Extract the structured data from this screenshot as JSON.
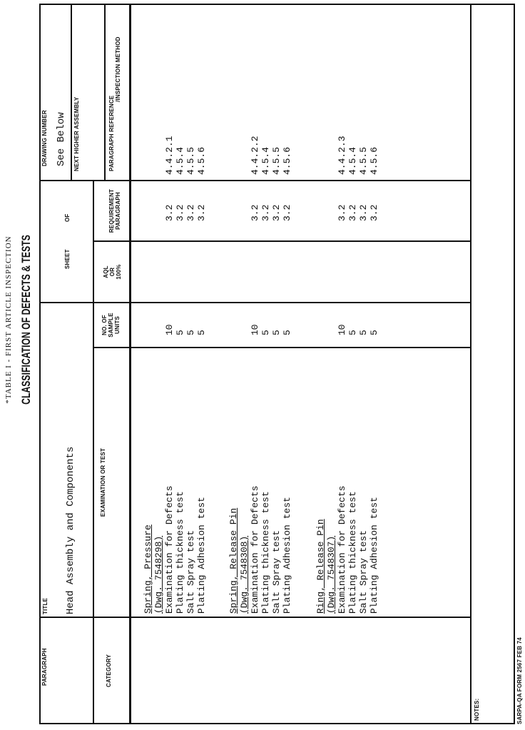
{
  "heading": {
    "table_title": "*TABLE I - FIRST ARTICLE INSPECTION",
    "subtitle": "CLASSIFICATION OF DEFECTS & TESTS"
  },
  "header": {
    "paragraph_label": "PARAGRAPH",
    "title_label": "TITLE",
    "title_value": "Head Assembly and Components",
    "sheet_label": "SHEET",
    "of_label": "OF",
    "drawing_number_label": "DRAWING NUMBER",
    "drawing_number_value": "See Below",
    "next_higher_assembly_label": "NEXT HIGHER ASSEMBLY"
  },
  "columns": {
    "category": "CATEGORY",
    "examination": "EXAMINATION OR TEST",
    "sample_units": [
      "NO. OF",
      "SAMPLE",
      "UNITS"
    ],
    "aql": [
      "AQL",
      "OR",
      "100%"
    ],
    "requirement": [
      "REQUIREMENT",
      "PARAGRAPH"
    ],
    "reference": [
      "PARAGRAPH REFERENCE",
      "/INSPECTION METHOD"
    ]
  },
  "groups": [
    {
      "part": "Spring, Pressure",
      "drawing": "(Dwg. 7548298)",
      "tests": [
        {
          "name": "Examination for Defects",
          "units": "10",
          "requirement": "3.2",
          "reference": "4.4.2.1"
        },
        {
          "name": "Plating thickness test",
          "units": "5",
          "requirement": "3.2",
          "reference": "4.5.4"
        },
        {
          "name": "Salt Spray test",
          "units": "5",
          "requirement": "3.2",
          "reference": "4.5.5"
        },
        {
          "name": "Plating Adhesion test",
          "units": "5",
          "requirement": "3.2",
          "reference": "4.5.6"
        }
      ]
    },
    {
      "part": "Spring, Release Pin",
      "drawing": "(Dwg. 7548308)",
      "tests": [
        {
          "name": "Examination for Defects",
          "units": "10",
          "requirement": "3.2",
          "reference": "4.4.2.2"
        },
        {
          "name": "Plating thickness test",
          "units": "5",
          "requirement": "3.2",
          "reference": "4.5.4"
        },
        {
          "name": "Salt Spray test",
          "units": "5",
          "requirement": "3.2",
          "reference": "4.5.5"
        },
        {
          "name": "Plating Adhesion test",
          "units": "5",
          "requirement": "3.2",
          "reference": "4.5.6"
        }
      ]
    },
    {
      "part": "Ring, Release Pin",
      "drawing": "(Dwg. 7548307)",
      "tests": [
        {
          "name": "Examination for Defects",
          "units": "10",
          "requirement": "3.2",
          "reference": "4.4.2.3"
        },
        {
          "name": "Plating thickness test",
          "units": "5",
          "requirement": "3.2",
          "reference": "4.5.4"
        },
        {
          "name": "Salt Spray test",
          "units": "5",
          "requirement": "3.2",
          "reference": "4.5.5"
        },
        {
          "name": "Plating Adhesion test",
          "units": "5",
          "requirement": "3.2",
          "reference": "4.5.6"
        }
      ]
    }
  ],
  "notes_label": "NOTES:",
  "footer": "SARPA-QA FORM 2567 FEB 74"
}
